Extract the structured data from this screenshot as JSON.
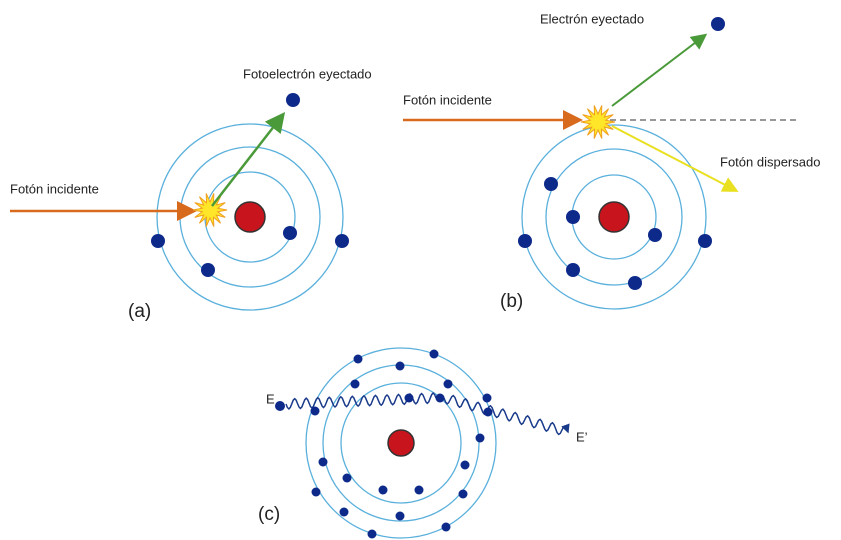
{
  "panel_a": {
    "incident": "Fotón incidente",
    "ejected": "Fotoelectrón eyectado",
    "label": "(a)"
  },
  "panel_b": {
    "incident": "Fotón incidente",
    "ejected": "Electrón eyectado",
    "scattered": "Fotón dispersado",
    "label": "(b)"
  },
  "panel_c": {
    "energy_in": "E",
    "energy_out": "E’",
    "label": "(c)"
  }
}
